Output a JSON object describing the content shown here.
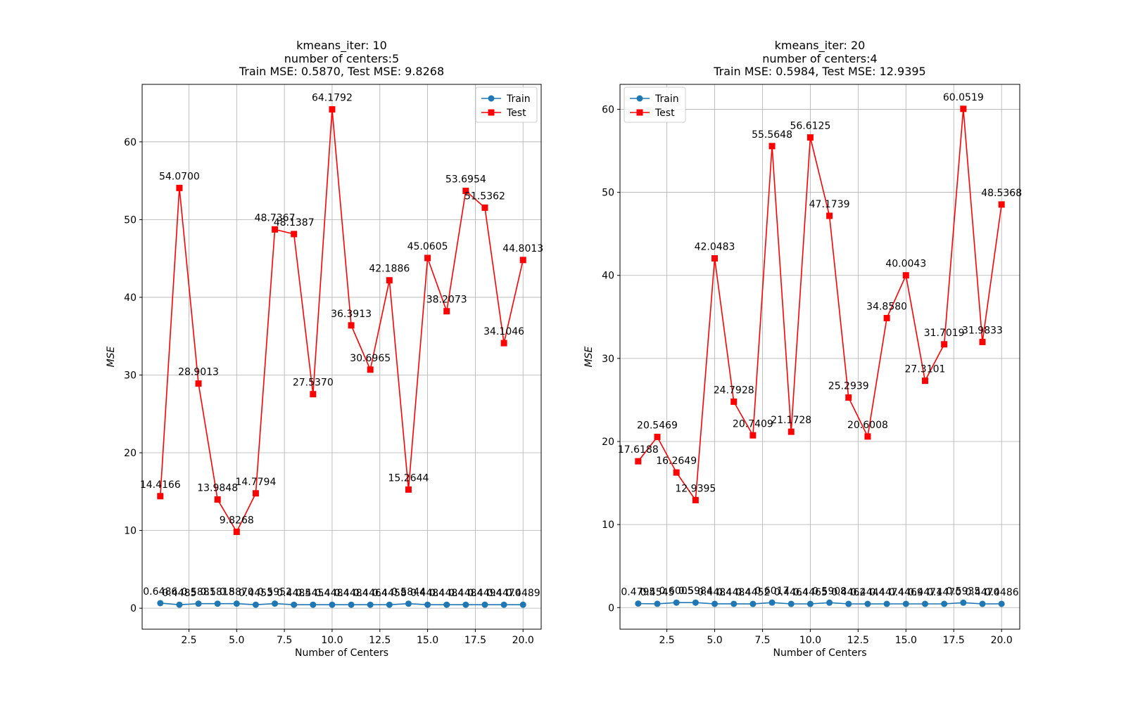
{
  "colors": {
    "train": "#1f77b4",
    "test": "#ff0000",
    "grid": "#b0b0b0",
    "axis": "#000000"
  },
  "chart_data": [
    {
      "type": "line",
      "title_lines": [
        "kmeans_iter: 10",
        "number of centers:5",
        "Train MSE: 0.5870, Test MSE: 9.8268"
      ],
      "xlabel": "Number of Centers",
      "ylabel": "MSE",
      "xlim": [
        0.05,
        20.95
      ],
      "ylim": [
        -2.7,
        67.4
      ],
      "xticks": [
        2.5,
        5.0,
        7.5,
        10.0,
        12.5,
        15.0,
        17.5,
        20.0
      ],
      "xtick_labels": [
        "2.5",
        "5.0",
        "7.5",
        "10.0",
        "12.5",
        "15.0",
        "17.5",
        "20.0"
      ],
      "yticks": [
        0,
        10,
        20,
        30,
        40,
        50,
        60
      ],
      "ytick_labels": [
        "0",
        "10",
        "20",
        "30",
        "40",
        "50",
        "60"
      ],
      "grid": true,
      "legend_position": "upper right",
      "x": [
        1,
        2,
        3,
        4,
        5,
        6,
        7,
        8,
        9,
        10,
        11,
        12,
        13,
        14,
        15,
        16,
        17,
        18,
        19,
        20
      ],
      "series": [
        {
          "name": "Train",
          "marker": "circle",
          "color": "#1f77b4",
          "values": [
            0.6486,
            0.4485,
            0.5881,
            0.5818,
            0.587,
            0.4453,
            0.5952,
            0.4485,
            0.4454,
            0.4484,
            0.4484,
            0.4464,
            0.4458,
            0.5844,
            0.4484,
            0.4484,
            0.4484,
            0.4494,
            0.447,
            0.4489
          ],
          "labels": [
            "0.6486",
            "0.4485",
            "0.5881",
            "0.5818",
            "0.5870",
            "0.4453",
            "0.5952",
            "0.4485",
            "0.4454",
            "0.4484",
            "0.4484",
            "0.4464",
            "0.4458",
            "0.5844",
            "0.4484",
            "0.4484",
            "0.4484",
            "0.4494",
            "0.4470",
            "0.4489"
          ]
        },
        {
          "name": "Test",
          "marker": "square",
          "color": "#ff0000",
          "values": [
            14.4166,
            54.07,
            28.9013,
            13.9848,
            9.8268,
            14.7794,
            48.7367,
            48.1387,
            27.537,
            64.1792,
            36.3913,
            30.6965,
            42.1886,
            15.2644,
            45.0605,
            38.2073,
            53.6954,
            51.5362,
            34.1046,
            44.8013
          ],
          "labels": [
            "14.4166",
            "54.0700",
            "28.9013",
            "13.9848",
            "9.8268",
            "14.7794",
            "48.7367",
            "48.1387",
            "27.5370",
            "64.1792",
            "36.3913",
            "30.6965",
            "42.1886",
            "15.2644",
            "45.0605",
            "38.2073",
            "53.6954",
            "51.5362",
            "34.1046",
            "44.8013"
          ]
        }
      ]
    },
    {
      "type": "line",
      "title_lines": [
        "kmeans_iter: 20",
        "number of centers:4",
        "Train MSE: 0.5984, Test MSE: 12.9395"
      ],
      "xlabel": "Number of Centers",
      "ylabel": "MSE",
      "xlim": [
        0.05,
        20.95
      ],
      "ylim": [
        -2.6,
        63.0
      ],
      "xticks": [
        2.5,
        5.0,
        7.5,
        10.0,
        12.5,
        15.0,
        17.5,
        20.0
      ],
      "xtick_labels": [
        "2.5",
        "5.0",
        "7.5",
        "10.0",
        "12.5",
        "15.0",
        "17.5",
        "20.0"
      ],
      "yticks": [
        0,
        10,
        20,
        30,
        40,
        50,
        60
      ],
      "ytick_labels": [
        "0",
        "10",
        "20",
        "30",
        "40",
        "50",
        "60"
      ],
      "grid": true,
      "legend_position": "upper left",
      "x": [
        1,
        2,
        3,
        4,
        5,
        6,
        7,
        8,
        9,
        10,
        11,
        12,
        13,
        14,
        15,
        16,
        17,
        18,
        19,
        20
      ],
      "series": [
        {
          "name": "Train",
          "marker": "circle",
          "color": "#1f77b4",
          "values": [
            0.4795,
            0.4545,
            0.6005,
            0.5984,
            0.4484,
            0.4484,
            0.4452,
            0.6017,
            0.4464,
            0.4465,
            0.5908,
            0.4462,
            0.4444,
            0.4474,
            0.4469,
            0.4471,
            0.447,
            0.5935,
            0.447,
            0.4486
          ],
          "labels": [
            "0.4795",
            "0.4545",
            "0.6005",
            "0.5984",
            "0.4484",
            "0.4484",
            "0.4452",
            "0.6017",
            "0.4464",
            "0.4465",
            "0.5908",
            "0.4462",
            "0.4444",
            "0.4474",
            "0.4469",
            "0.4471",
            "0.4470",
            "0.5935",
            "0.4470",
            "0.4486"
          ]
        },
        {
          "name": "Test",
          "marker": "square",
          "color": "#ff0000",
          "values": [
            17.6188,
            20.5469,
            16.2649,
            12.9395,
            42.0483,
            24.7928,
            20.7409,
            55.5648,
            21.1728,
            56.6125,
            47.1739,
            25.2939,
            20.6008,
            34.858,
            40.0043,
            27.3101,
            31.7019,
            60.0519,
            31.9833,
            48.5368
          ],
          "labels": [
            "17.6188",
            "20.5469",
            "16.2649",
            "12.9395",
            "42.0483",
            "24.7928",
            "20.7409",
            "55.5648",
            "21.1728",
            "56.6125",
            "47.1739",
            "25.2939",
            "20.6008",
            "34.8580",
            "40.0043",
            "27.3101",
            "31.7019",
            "60.0519",
            "31.9833",
            "48.5368"
          ]
        }
      ]
    }
  ]
}
